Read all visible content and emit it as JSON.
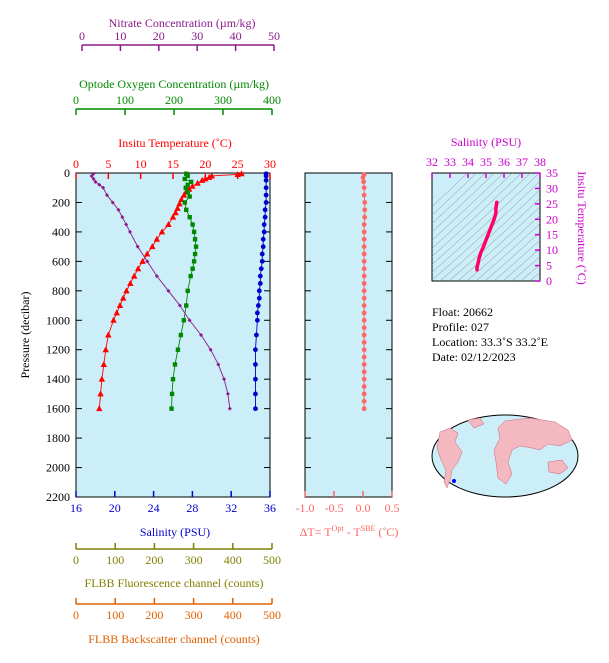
{
  "chart_data": {
    "type": "line",
    "info": {
      "float": "Float:  20662",
      "profile": "Profile:  027",
      "location": "Location:  33.3˚S  33.2˚E",
      "date": "Date:  02/12/2023"
    },
    "axes": {
      "pressure": {
        "label": "Pressure (decibar)",
        "range": [
          0,
          2200
        ],
        "ticks": [
          "0",
          "200",
          "400",
          "600",
          "800",
          "1000",
          "1200",
          "1400",
          "1600",
          "1800",
          "2000",
          "2200"
        ],
        "inverted": true
      },
      "temperature": {
        "label": "Insitu Temperature (˚C)",
        "range": [
          0,
          30
        ],
        "ticks": [
          "0",
          "5",
          "10",
          "15",
          "20",
          "25",
          "30"
        ],
        "color": "#ff0000"
      },
      "salinity": {
        "label": "Salinity (PSU)",
        "range": [
          16,
          36
        ],
        "ticks": [
          "16",
          "20",
          "24",
          "28",
          "32",
          "36"
        ],
        "color": "#0000cc"
      },
      "oxygen": {
        "label": "Optode Oxygen Concentration (µm/kg)",
        "range": [
          0,
          400
        ],
        "ticks": [
          "0",
          "100",
          "200",
          "300",
          "400"
        ],
        "color": "#008800"
      },
      "nitrate": {
        "label": "Nitrate Concentration (µm/kg)",
        "range": [
          0,
          50
        ],
        "ticks": [
          "0",
          "10",
          "20",
          "30",
          "40",
          "50"
        ],
        "color": "#8b1a8b"
      },
      "fluorescence": {
        "label": "FLBB Fluorescence channel (counts)",
        "range": [
          0,
          500
        ],
        "ticks": [
          "0",
          "100",
          "200",
          "300",
          "400",
          "500"
        ],
        "color": "#808000"
      },
      "backscatter": {
        "label": "FLBB Backscatter channel (counts)",
        "range": [
          0,
          500
        ],
        "ticks": [
          "0",
          "100",
          "200",
          "300",
          "400",
          "500"
        ],
        "color": "#e06000"
      },
      "dt": {
        "label_prefix": "ΔT= T",
        "label_sup1": "Opt",
        "label_mid": " - T",
        "label_sup2": "SBE",
        "label_suffix": " (˚C)",
        "range": [
          -1.0,
          0.5
        ],
        "ticks": [
          "-1.0",
          "-0.5",
          "0.0",
          "0.5"
        ],
        "color": "#ff6666"
      },
      "ts_salinity": {
        "label": "Salinity (PSU)",
        "range": [
          32,
          38
        ],
        "ticks": [
          "32",
          "33",
          "34",
          "35",
          "36",
          "37",
          "38"
        ],
        "color": "#cc00cc"
      },
      "ts_temperature": {
        "label": "Insitu Temperature (˚C)",
        "range": [
          0,
          35
        ],
        "ticks": [
          "0",
          "5",
          "10",
          "15",
          "20",
          "25",
          "30",
          "35"
        ],
        "color": "#cc00cc"
      }
    },
    "series": [
      {
        "name": "temperature",
        "color": "#ff0000",
        "marker": "triangle",
        "pressure": [
          5,
          10,
          20,
          30,
          40,
          50,
          70,
          90,
          110,
          130,
          150,
          180,
          210,
          240,
          270,
          300,
          350,
          400,
          450,
          500,
          550,
          600,
          650,
          700,
          750,
          800,
          850,
          900,
          950,
          1000,
          1100,
          1200,
          1300,
          1400,
          1500,
          1600
        ],
        "values": [
          25.6,
          25.0,
          21.0,
          20.6,
          20.0,
          19.5,
          18.8,
          18.0,
          17.5,
          17.0,
          16.7,
          16.3,
          16.0,
          15.7,
          15.4,
          15.0,
          14.3,
          13.3,
          12.5,
          11.8,
          11.0,
          10.3,
          9.6,
          9.0,
          8.4,
          7.8,
          7.3,
          6.8,
          6.3,
          5.8,
          5.0,
          4.6,
          4.3,
          4.0,
          3.8,
          3.6
        ]
      },
      {
        "name": "salinity",
        "color": "#0000cc",
        "marker": "circle",
        "pressure": [
          5,
          20,
          50,
          100,
          150,
          200,
          250,
          300,
          350,
          400,
          450,
          500,
          550,
          600,
          650,
          700,
          750,
          800,
          850,
          900,
          950,
          1000,
          1100,
          1200,
          1300,
          1400,
          1500,
          1600
        ],
        "values": [
          35.6,
          35.6,
          35.6,
          35.6,
          35.6,
          35.6,
          35.5,
          35.5,
          35.4,
          35.4,
          35.3,
          35.3,
          35.2,
          35.2,
          35.1,
          35.0,
          35.0,
          34.9,
          34.9,
          34.8,
          34.7,
          34.7,
          34.6,
          34.5,
          34.5,
          34.5,
          34.5,
          34.5
        ]
      },
      {
        "name": "oxygen",
        "color": "#008800",
        "marker": "square",
        "pressure": [
          5,
          20,
          40,
          60,
          80,
          100,
          130,
          160,
          200,
          250,
          300,
          350,
          400,
          450,
          500,
          550,
          600,
          650,
          700,
          800,
          900,
          1000,
          1100,
          1200,
          1300,
          1400,
          1500,
          1600
        ],
        "values": [
          225,
          228,
          222,
          235,
          228,
          224,
          228,
          232,
          222,
          225,
          232,
          238,
          241,
          243,
          245,
          243,
          241,
          238,
          234,
          228,
          225,
          220,
          214,
          208,
          202,
          198,
          196,
          195
        ]
      },
      {
        "name": "nitrate",
        "color": "#8b1a8b",
        "marker": "diamond",
        "pressure": [
          5,
          20,
          40,
          60,
          80,
          100,
          150,
          200,
          250,
          300,
          350,
          400,
          500,
          600,
          700,
          800,
          900,
          1000,
          1100,
          1200,
          1300,
          1400,
          1500,
          1600
        ],
        "values": [
          3.0,
          2.5,
          3.0,
          3.5,
          4.5,
          5.5,
          6.5,
          8.0,
          9.5,
          10.5,
          11.5,
          12.5,
          14.5,
          17.0,
          19.5,
          22.5,
          25.5,
          28.0,
          31.0,
          33.5,
          35.5,
          37.0,
          38.0,
          38.5
        ]
      },
      {
        "name": "dt",
        "color": "#ff6666",
        "marker": "circle",
        "pressure": [
          10,
          30,
          60,
          100,
          150,
          200,
          250,
          300,
          350,
          400,
          450,
          500,
          550,
          600,
          650,
          700,
          750,
          800,
          850,
          900,
          950,
          1000,
          1050,
          1100,
          1150,
          1200,
          1250,
          1300,
          1350,
          1400,
          1450,
          1500,
          1550,
          1600
        ],
        "values": [
          0.02,
          0.0,
          0.01,
          0.02,
          0.02,
          0.03,
          0.03,
          0.03,
          0.02,
          0.02,
          0.02,
          0.02,
          0.02,
          0.02,
          0.02,
          0.02,
          0.02,
          0.02,
          0.02,
          0.02,
          0.02,
          0.02,
          0.02,
          0.02,
          0.02,
          0.02,
          0.02,
          0.02,
          0.02,
          0.02,
          0.02,
          0.02,
          0.02,
          0.02
        ]
      },
      {
        "name": "ts",
        "color": "#ff0066",
        "salinity": [
          34.5,
          34.5,
          34.55,
          34.6,
          34.7,
          34.85,
          34.95,
          35.05,
          35.15,
          35.25,
          35.35,
          35.45,
          35.55,
          35.55,
          35.6
        ],
        "values": [
          3.6,
          4.5,
          5.5,
          7.0,
          9.0,
          11.0,
          12.5,
          14.0,
          15.5,
          17.0,
          18.5,
          20.0,
          22.0,
          23.5,
          25.5
        ]
      }
    ],
    "grid": false,
    "plot_background": "#cceef8"
  }
}
